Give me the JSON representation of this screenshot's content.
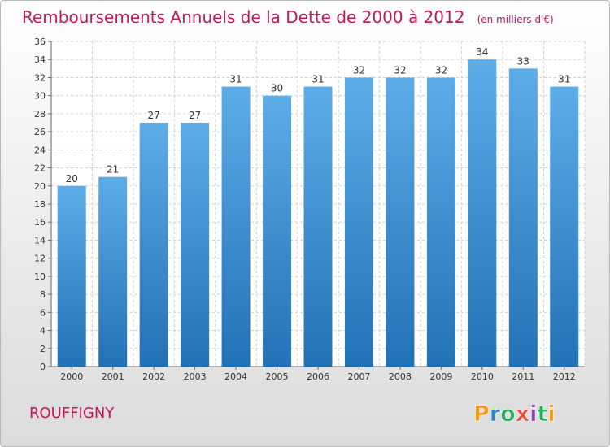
{
  "chart_data": {
    "type": "bar",
    "title": "Remboursements Annuels de la Dette de 2000 à 2012",
    "subtitle": "(en milliers d'€)",
    "xlabel": "",
    "ylabel": "",
    "categories": [
      "2000",
      "2001",
      "2002",
      "2003",
      "2004",
      "2005",
      "2006",
      "2007",
      "2008",
      "2009",
      "2010",
      "2011",
      "2012"
    ],
    "values": [
      20,
      21,
      27,
      27,
      31,
      30,
      31,
      32,
      32,
      32,
      34,
      33,
      31
    ],
    "ylim": [
      0,
      36
    ],
    "yticks": [
      0,
      2,
      4,
      6,
      8,
      10,
      12,
      14,
      16,
      18,
      20,
      22,
      24,
      26,
      28,
      30,
      32,
      34,
      36
    ],
    "grid": true,
    "bar_color": "#3a8fd6"
  },
  "commune": "ROUFFIGNY",
  "logo": {
    "text": "Proxiti",
    "letters": [
      "P",
      "r",
      "o",
      "x",
      "i",
      "t",
      "i"
    ],
    "colors": [
      "#f39c12",
      "#2e86c1",
      "#27ae60",
      "#e74c3c",
      "#8e44ad",
      "#27ae60",
      "#f39c12"
    ]
  }
}
